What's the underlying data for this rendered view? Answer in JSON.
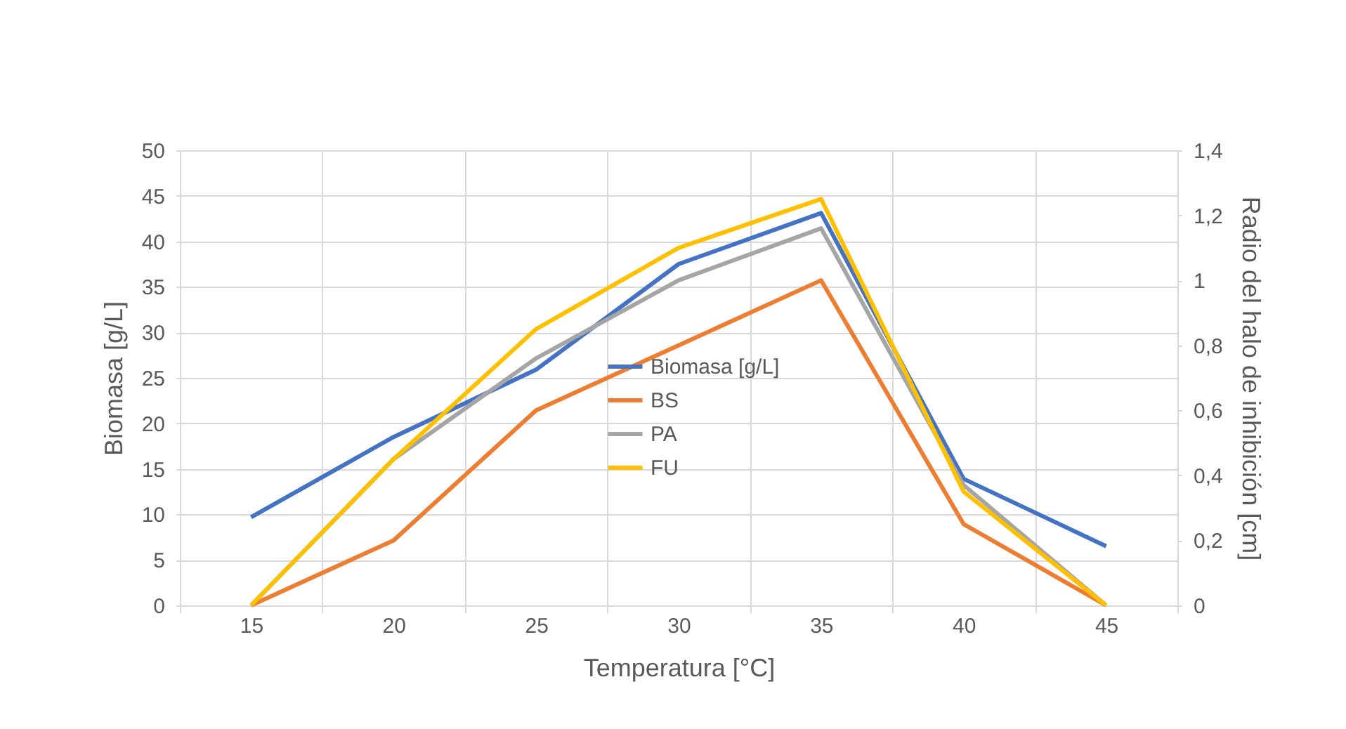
{
  "chart_data": {
    "type": "line",
    "xlabel": "Temperatura [°C]",
    "ylabel": "Biomasa [g/L]",
    "y2label": "Radio del halo de inhibición [cm]",
    "categories": [
      "15",
      "20",
      "25",
      "30",
      "35",
      "40",
      "45"
    ],
    "series": [
      {
        "name": "Biomasa [g/L]",
        "color": "#4472c4",
        "values": [
          9.7,
          18.5,
          25.9,
          37.5,
          43.1,
          13.9,
          6.5
        ]
      },
      {
        "name": "BS",
        "color": "#ed7d31",
        "axis": "y2",
        "values": [
          0,
          0.2,
          0.6,
          0.8,
          1.0,
          0.25,
          0
        ]
      },
      {
        "name": "PA",
        "color": "#a5a5a5",
        "axis": "y2",
        "values": [
          0,
          0.45,
          0.76,
          1.0,
          1.16,
          0.37,
          0
        ]
      },
      {
        "name": "FU",
        "color": "#ffc000",
        "axis": "y2",
        "values": [
          0,
          0.45,
          0.85,
          1.1,
          1.25,
          0.35,
          0
        ]
      }
    ],
    "ylim": [
      0,
      50
    ],
    "yticks": [
      0,
      5,
      10,
      15,
      20,
      25,
      30,
      35,
      40,
      45,
      50
    ],
    "y2lim": [
      0,
      1.4
    ],
    "y2ticks": [
      0,
      {
        "value": 0.2,
        "label": "0,2"
      },
      {
        "value": 0.4,
        "label": "0,4"
      },
      {
        "value": 0.6,
        "label": "0,6"
      },
      {
        "value": 0.8,
        "label": "0,8"
      },
      1,
      {
        "value": 1.2,
        "label": "1,2"
      },
      {
        "value": 1.4,
        "label": "1,4"
      }
    ],
    "grid": true,
    "legend": "center",
    "line_style": "solid",
    "marker": "none"
  }
}
